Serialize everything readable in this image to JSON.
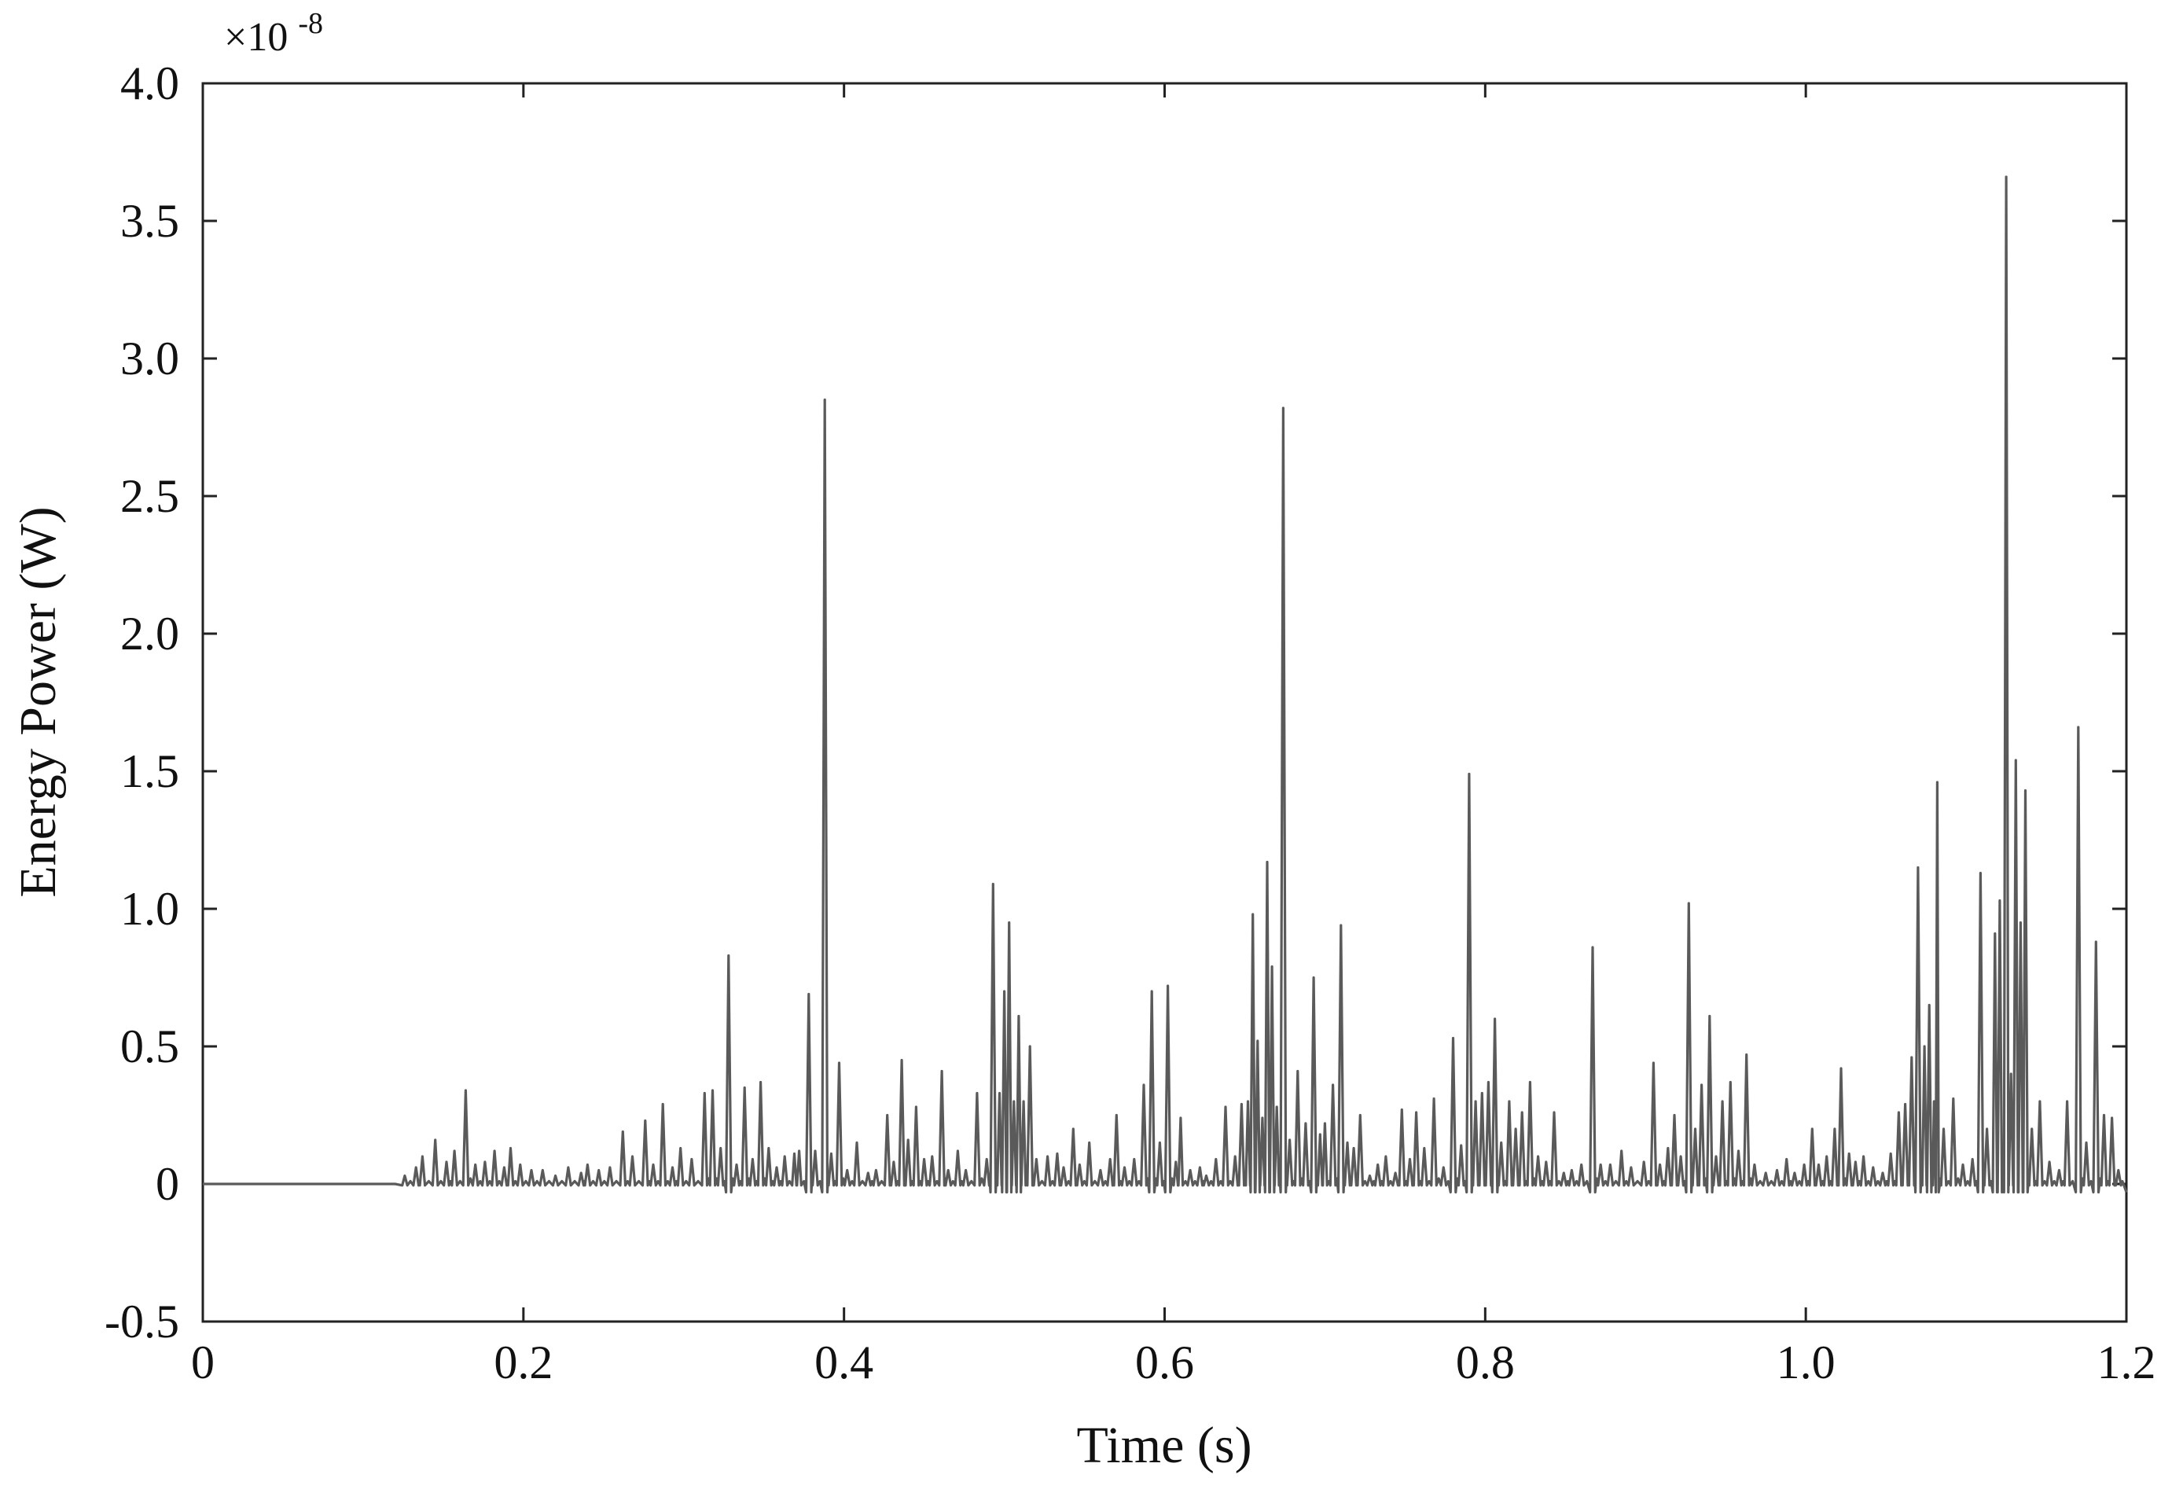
{
  "chart_data": {
    "type": "line",
    "xlabel": "Time (s)",
    "ylabel": "Energy Power (W)",
    "y_multiplier_label": "×10",
    "y_multiplier_exponent": "-8",
    "xlim": [
      0,
      1.2
    ],
    "ylim": [
      -0.5,
      4.0
    ],
    "x_ticks": [
      0,
      0.2,
      0.4,
      0.6,
      0.8,
      1.0,
      1.2
    ],
    "x_tick_labels": [
      "0",
      "0.2",
      "0.4",
      "0.6",
      "0.8",
      "1.0",
      "1.2"
    ],
    "y_ticks": [
      -0.5,
      0,
      0.5,
      1.0,
      1.5,
      2.0,
      2.5,
      3.0,
      3.5,
      4.0
    ],
    "y_tick_labels": [
      "-0.5",
      "0",
      "0.5",
      "1.0",
      "1.5",
      "2.0",
      "2.5",
      "3.0",
      "3.5",
      "4.0"
    ],
    "grid": false,
    "series": [
      {
        "color": "#5a5a5a",
        "baseline": 0,
        "start_time": 0.12,
        "peaks": [
          [
            0.126,
            0.03
          ],
          [
            0.133,
            0.06
          ],
          [
            0.137,
            0.1
          ],
          [
            0.145,
            0.16
          ],
          [
            0.152,
            0.08
          ],
          [
            0.157,
            0.12
          ],
          [
            0.164,
            0.34
          ],
          [
            0.17,
            0.07
          ],
          [
            0.176,
            0.08
          ],
          [
            0.182,
            0.12
          ],
          [
            0.188,
            0.06
          ],
          [
            0.192,
            0.13
          ],
          [
            0.198,
            0.07
          ],
          [
            0.205,
            0.05
          ],
          [
            0.212,
            0.05
          ],
          [
            0.22,
            0.03
          ],
          [
            0.228,
            0.06
          ],
          [
            0.236,
            0.04
          ],
          [
            0.24,
            0.07
          ],
          [
            0.247,
            0.05
          ],
          [
            0.254,
            0.06
          ],
          [
            0.262,
            0.19
          ],
          [
            0.268,
            0.1
          ],
          [
            0.276,
            0.23
          ],
          [
            0.281,
            0.07
          ],
          [
            0.287,
            0.29
          ],
          [
            0.293,
            0.06
          ],
          [
            0.298,
            0.13
          ],
          [
            0.305,
            0.09
          ],
          [
            0.313,
            0.33
          ],
          [
            0.318,
            0.34
          ],
          [
            0.323,
            0.13
          ],
          [
            0.328,
            0.83
          ],
          [
            0.333,
            0.07
          ],
          [
            0.338,
            0.35
          ],
          [
            0.343,
            0.09
          ],
          [
            0.348,
            0.37
          ],
          [
            0.353,
            0.13
          ],
          [
            0.358,
            0.06
          ],
          [
            0.363,
            0.1
          ],
          [
            0.369,
            0.11
          ],
          [
            0.372,
            0.12
          ],
          [
            0.378,
            0.69
          ],
          [
            0.382,
            0.12
          ],
          [
            0.388,
            2.85
          ],
          [
            0.392,
            0.11
          ],
          [
            0.397,
            0.44
          ],
          [
            0.402,
            0.05
          ],
          [
            0.408,
            0.15
          ],
          [
            0.415,
            0.04
          ],
          [
            0.42,
            0.05
          ],
          [
            0.427,
            0.25
          ],
          [
            0.431,
            0.08
          ],
          [
            0.436,
            0.45
          ],
          [
            0.44,
            0.16
          ],
          [
            0.445,
            0.28
          ],
          [
            0.45,
            0.09
          ],
          [
            0.455,
            0.1
          ],
          [
            0.461,
            0.41
          ],
          [
            0.465,
            0.05
          ],
          [
            0.471,
            0.12
          ],
          [
            0.476,
            0.05
          ],
          [
            0.483,
            0.33
          ],
          [
            0.489,
            0.09
          ],
          [
            0.493,
            1.09
          ],
          [
            0.497,
            0.33
          ],
          [
            0.5,
            0.7
          ],
          [
            0.503,
            0.95
          ],
          [
            0.506,
            0.3
          ],
          [
            0.509,
            0.61
          ],
          [
            0.512,
            0.3
          ],
          [
            0.516,
            0.5
          ],
          [
            0.52,
            0.09
          ],
          [
            0.527,
            0.1
          ],
          [
            0.533,
            0.11
          ],
          [
            0.537,
            0.06
          ],
          [
            0.543,
            0.2
          ],
          [
            0.547,
            0.07
          ],
          [
            0.553,
            0.15
          ],
          [
            0.56,
            0.05
          ],
          [
            0.566,
            0.09
          ],
          [
            0.57,
            0.25
          ],
          [
            0.575,
            0.06
          ],
          [
            0.581,
            0.09
          ],
          [
            0.587,
            0.36
          ],
          [
            0.592,
            0.7
          ],
          [
            0.597,
            0.15
          ],
          [
            0.602,
            0.72
          ],
          [
            0.607,
            0.08
          ],
          [
            0.61,
            0.24
          ],
          [
            0.616,
            0.05
          ],
          [
            0.622,
            0.06
          ],
          [
            0.626,
            0.03
          ],
          [
            0.632,
            0.09
          ],
          [
            0.638,
            0.28
          ],
          [
            0.644,
            0.1
          ],
          [
            0.648,
            0.29
          ],
          [
            0.652,
            0.3
          ],
          [
            0.655,
            0.98
          ],
          [
            0.658,
            0.52
          ],
          [
            0.661,
            0.24
          ],
          [
            0.664,
            1.17
          ],
          [
            0.667,
            0.79
          ],
          [
            0.67,
            0.28
          ],
          [
            0.674,
            2.82
          ],
          [
            0.678,
            0.16
          ],
          [
            0.683,
            0.41
          ],
          [
            0.688,
            0.22
          ],
          [
            0.693,
            0.75
          ],
          [
            0.697,
            0.18
          ],
          [
            0.7,
            0.22
          ],
          [
            0.705,
            0.36
          ],
          [
            0.71,
            0.94
          ],
          [
            0.714,
            0.15
          ],
          [
            0.718,
            0.13
          ],
          [
            0.722,
            0.25
          ],
          [
            0.728,
            0.03
          ],
          [
            0.733,
            0.07
          ],
          [
            0.738,
            0.1
          ],
          [
            0.744,
            0.04
          ],
          [
            0.748,
            0.27
          ],
          [
            0.753,
            0.09
          ],
          [
            0.757,
            0.26
          ],
          [
            0.762,
            0.13
          ],
          [
            0.768,
            0.31
          ],
          [
            0.774,
            0.06
          ],
          [
            0.78,
            0.53
          ],
          [
            0.785,
            0.14
          ],
          [
            0.79,
            1.49
          ],
          [
            0.794,
            0.3
          ],
          [
            0.798,
            0.33
          ],
          [
            0.802,
            0.37
          ],
          [
            0.806,
            0.6
          ],
          [
            0.81,
            0.15
          ],
          [
            0.815,
            0.3
          ],
          [
            0.819,
            0.2
          ],
          [
            0.823,
            0.26
          ],
          [
            0.828,
            0.37
          ],
          [
            0.833,
            0.1
          ],
          [
            0.838,
            0.08
          ],
          [
            0.843,
            0.26
          ],
          [
            0.849,
            0.04
          ],
          [
            0.854,
            0.05
          ],
          [
            0.86,
            0.07
          ],
          [
            0.867,
            0.86
          ],
          [
            0.872,
            0.07
          ],
          [
            0.878,
            0.07
          ],
          [
            0.885,
            0.12
          ],
          [
            0.891,
            0.06
          ],
          [
            0.899,
            0.08
          ],
          [
            0.905,
            0.44
          ],
          [
            0.909,
            0.07
          ],
          [
            0.914,
            0.13
          ],
          [
            0.918,
            0.25
          ],
          [
            0.922,
            0.1
          ],
          [
            0.927,
            1.02
          ],
          [
            0.931,
            0.2
          ],
          [
            0.935,
            0.36
          ],
          [
            0.94,
            0.61
          ],
          [
            0.944,
            0.1
          ],
          [
            0.948,
            0.3
          ],
          [
            0.953,
            0.37
          ],
          [
            0.958,
            0.12
          ],
          [
            0.963,
            0.47
          ],
          [
            0.968,
            0.07
          ],
          [
            0.975,
            0.04
          ],
          [
            0.982,
            0.05
          ],
          [
            0.988,
            0.09
          ],
          [
            0.993,
            0.04
          ],
          [
            0.999,
            0.07
          ],
          [
            1.004,
            0.2
          ],
          [
            1.008,
            0.07
          ],
          [
            1.013,
            0.1
          ],
          [
            1.018,
            0.2
          ],
          [
            1.022,
            0.42
          ],
          [
            1.027,
            0.11
          ],
          [
            1.031,
            0.08
          ],
          [
            1.036,
            0.1
          ],
          [
            1.042,
            0.06
          ],
          [
            1.048,
            0.04
          ],
          [
            1.053,
            0.11
          ],
          [
            1.058,
            0.26
          ],
          [
            1.062,
            0.29
          ],
          [
            1.066,
            0.46
          ],
          [
            1.07,
            1.15
          ],
          [
            1.074,
            0.5
          ],
          [
            1.077,
            0.65
          ],
          [
            1.08,
            0.3
          ],
          [
            1.082,
            1.46
          ],
          [
            1.086,
            0.2
          ],
          [
            1.092,
            0.31
          ],
          [
            1.098,
            0.07
          ],
          [
            1.104,
            0.09
          ],
          [
            1.109,
            1.13
          ],
          [
            1.113,
            0.2
          ],
          [
            1.118,
            0.91
          ],
          [
            1.121,
            1.03
          ],
          [
            1.125,
            3.66
          ],
          [
            1.128,
            0.4
          ],
          [
            1.131,
            1.54
          ],
          [
            1.134,
            0.95
          ],
          [
            1.137,
            1.43
          ],
          [
            1.141,
            0.2
          ],
          [
            1.146,
            0.3
          ],
          [
            1.152,
            0.08
          ],
          [
            1.158,
            0.05
          ],
          [
            1.163,
            0.3
          ],
          [
            1.17,
            1.66
          ],
          [
            1.175,
            0.15
          ],
          [
            1.181,
            0.88
          ],
          [
            1.186,
            0.25
          ],
          [
            1.191,
            0.24
          ],
          [
            1.195,
            0.05
          ]
        ]
      }
    ]
  }
}
